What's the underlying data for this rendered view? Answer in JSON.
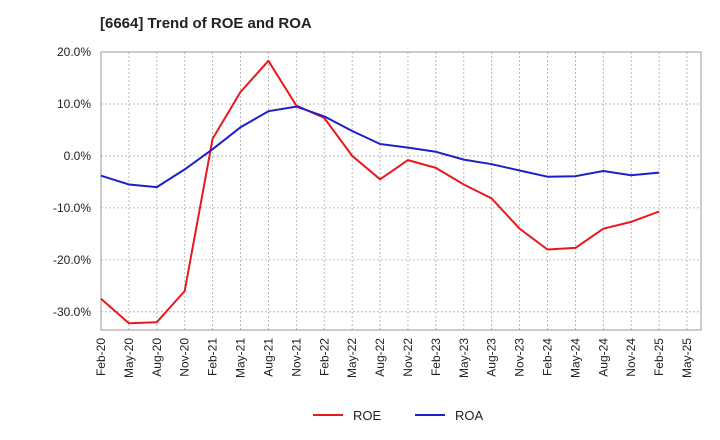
{
  "chart_data": {
    "type": "line",
    "title": "[6664]  Trend of ROE and ROA",
    "xlabel": "",
    "ylabel": "",
    "categories": [
      "Feb-20",
      "May-20",
      "Aug-20",
      "Nov-20",
      "Feb-21",
      "May-21",
      "Aug-21",
      "Nov-21",
      "Feb-22",
      "May-22",
      "Aug-22",
      "Nov-22",
      "Feb-23",
      "May-23",
      "Aug-23",
      "Nov-23",
      "Feb-24",
      "May-24",
      "Aug-24",
      "Nov-24",
      "Feb-25",
      "May-25"
    ],
    "ylim": [
      -33.5,
      20
    ],
    "yticks": [
      20,
      10,
      0,
      -10,
      -20,
      -30
    ],
    "ytick_labels": [
      "20.0%",
      "10.0%",
      "0.0%",
      "-10.0%",
      "-20.0%",
      "-30.0%"
    ],
    "grid": true,
    "legend_position": "bottom-center",
    "series": [
      {
        "name": "ROE",
        "color": "#e8191c",
        "values": [
          -27.5,
          -32.2,
          -32.0,
          -26.0,
          3.3,
          12.3,
          18.3,
          9.7,
          7.3,
          0.0,
          -4.5,
          -0.8,
          -2.3,
          -5.5,
          -8.2,
          -14.0,
          -18.0,
          -17.7,
          -14.0,
          -12.7,
          -10.7,
          null
        ]
      },
      {
        "name": "ROA",
        "color": "#1f1fc8",
        "values": [
          -3.8,
          -5.5,
          -6.0,
          -2.6,
          1.3,
          5.5,
          8.6,
          9.5,
          7.6,
          4.8,
          2.3,
          1.6,
          0.8,
          -0.7,
          -1.6,
          -2.8,
          -4.0,
          -3.9,
          -2.9,
          -3.7,
          -3.2,
          null
        ]
      }
    ]
  }
}
